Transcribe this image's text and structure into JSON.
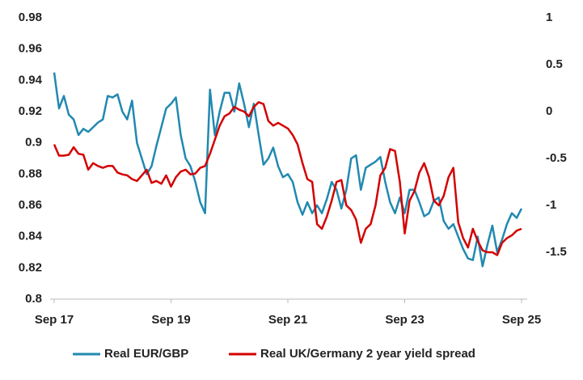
{
  "chart_data": {
    "type": "line",
    "categories": [
      "Sep 17",
      "Oct 17",
      "Nov 17",
      "Dec 17",
      "Jan 18",
      "Feb 18",
      "Mar 18",
      "Apr 18",
      "May 18",
      "Jun 18",
      "Jul 18",
      "Aug 18",
      "Sep 18",
      "Oct 18",
      "Nov 18",
      "Dec 18",
      "Jan 19",
      "Feb 19",
      "Mar 19",
      "Apr 19",
      "May 19",
      "Jun 19",
      "Jul 19",
      "Aug 19",
      "Sep 19",
      "Oct 19",
      "Nov 19",
      "Dec 19",
      "Jan 20",
      "Feb 20",
      "Mar 20",
      "Apr 20",
      "May 20",
      "Jun 20",
      "Jul 20",
      "Aug 20",
      "Sep 20",
      "Oct 20",
      "Nov 20",
      "Dec 20",
      "Jan 21",
      "Feb 21",
      "Mar 21",
      "Apr 21",
      "May 21",
      "Jun 21",
      "Jul 21",
      "Aug 21",
      "Sep 21",
      "Oct 21",
      "Nov 21",
      "Dec 21",
      "Jan 22",
      "Feb 22",
      "Mar 22",
      "Apr 22",
      "May 22",
      "Jun 22",
      "Jul 22",
      "Aug 22",
      "Sep 22",
      "Oct 22",
      "Nov 22",
      "Dec 22",
      "Jan 23",
      "Feb 23",
      "Mar 23",
      "Apr 23",
      "May 23",
      "Jun 23",
      "Jul 23",
      "Aug 23",
      "Sep 23",
      "Oct 23",
      "Nov 23",
      "Dec 23",
      "Jan 24",
      "Feb 24",
      "Mar 24",
      "Apr 24",
      "May 24",
      "Jun 24",
      "Jul 24",
      "Aug 24",
      "Sep 24",
      "Oct 24",
      "Nov 24",
      "Dec 24",
      "Jan 25",
      "Feb 25",
      "Mar 25",
      "Apr 25",
      "May 25",
      "Jun 25",
      "Jul 25",
      "Aug 25",
      "Sep 25"
    ],
    "series": [
      {
        "name": "Real EUR/GBP",
        "color": "#2189b0",
        "axis": "y",
        "values": [
          0.945,
          0.922,
          0.93,
          0.918,
          0.915,
          0.905,
          0.909,
          0.907,
          0.91,
          0.913,
          0.915,
          0.93,
          0.929,
          0.931,
          0.92,
          0.915,
          0.927,
          0.9,
          0.89,
          0.88,
          0.885,
          0.898,
          0.91,
          0.922,
          0.925,
          0.929,
          0.905,
          0.89,
          0.885,
          0.875,
          0.862,
          0.855,
          0.934,
          0.905,
          0.92,
          0.932,
          0.932,
          0.92,
          0.938,
          0.925,
          0.91,
          0.925,
          0.905,
          0.886,
          0.89,
          0.897,
          0.885,
          0.878,
          0.88,
          0.875,
          0.862,
          0.854,
          0.862,
          0.855,
          0.86,
          0.855,
          0.864,
          0.875,
          0.87,
          0.858,
          0.87,
          0.89,
          0.892,
          0.87,
          0.884,
          0.886,
          0.888,
          0.891,
          0.875,
          0.862,
          0.855,
          0.865,
          0.855,
          0.87,
          0.87,
          0.862,
          0.853,
          0.855,
          0.863,
          0.865,
          0.85,
          0.845,
          0.848,
          0.84,
          0.832,
          0.826,
          0.825,
          0.84,
          0.821,
          0.835,
          0.847,
          0.83,
          0.838,
          0.848,
          0.855,
          0.852,
          0.858
        ]
      },
      {
        "name": "Real UK/Germany 2 year yield spread",
        "color": "#d40000",
        "axis": "y2",
        "values": [
          -0.35,
          -0.47,
          -0.47,
          -0.46,
          -0.38,
          -0.45,
          -0.46,
          -0.62,
          -0.55,
          -0.58,
          -0.6,
          -0.58,
          -0.58,
          -0.65,
          -0.67,
          -0.68,
          -0.72,
          -0.74,
          -0.68,
          -0.62,
          -0.76,
          -0.74,
          -0.77,
          -0.68,
          -0.8,
          -0.7,
          -0.64,
          -0.62,
          -0.67,
          -0.66,
          -0.6,
          -0.58,
          -0.45,
          -0.3,
          -0.15,
          -0.05,
          -0.02,
          0.05,
          0.02,
          0.0,
          -0.05,
          0.05,
          0.1,
          0.08,
          -0.1,
          -0.15,
          -0.12,
          -0.15,
          -0.18,
          -0.25,
          -0.35,
          -0.55,
          -0.72,
          -0.75,
          -1.2,
          -1.25,
          -1.12,
          -0.95,
          -0.75,
          -0.73,
          -1.0,
          -1.05,
          -1.15,
          -1.4,
          -1.25,
          -1.2,
          -1.0,
          -0.68,
          -0.6,
          -0.4,
          -0.42,
          -0.75,
          -1.3,
          -0.95,
          -0.85,
          -0.65,
          -0.55,
          -0.7,
          -0.95,
          -1.0,
          -0.9,
          -0.7,
          -0.6,
          -1.18,
          -1.35,
          -1.45,
          -1.25,
          -1.38,
          -1.48,
          -1.5,
          -1.5,
          -1.53,
          -1.4,
          -1.35,
          -1.32,
          -1.27,
          -1.25
        ]
      }
    ],
    "ylim": [
      0.8,
      0.98
    ],
    "yticks": [
      0.8,
      0.82,
      0.84,
      0.86,
      0.88,
      0.9,
      0.92,
      0.94,
      0.96,
      0.98
    ],
    "y2lim": [
      -2,
      1
    ],
    "y2ticks": [
      -1.5,
      -1,
      -0.5,
      0,
      0.5,
      1
    ],
    "legend": "bottom"
  }
}
